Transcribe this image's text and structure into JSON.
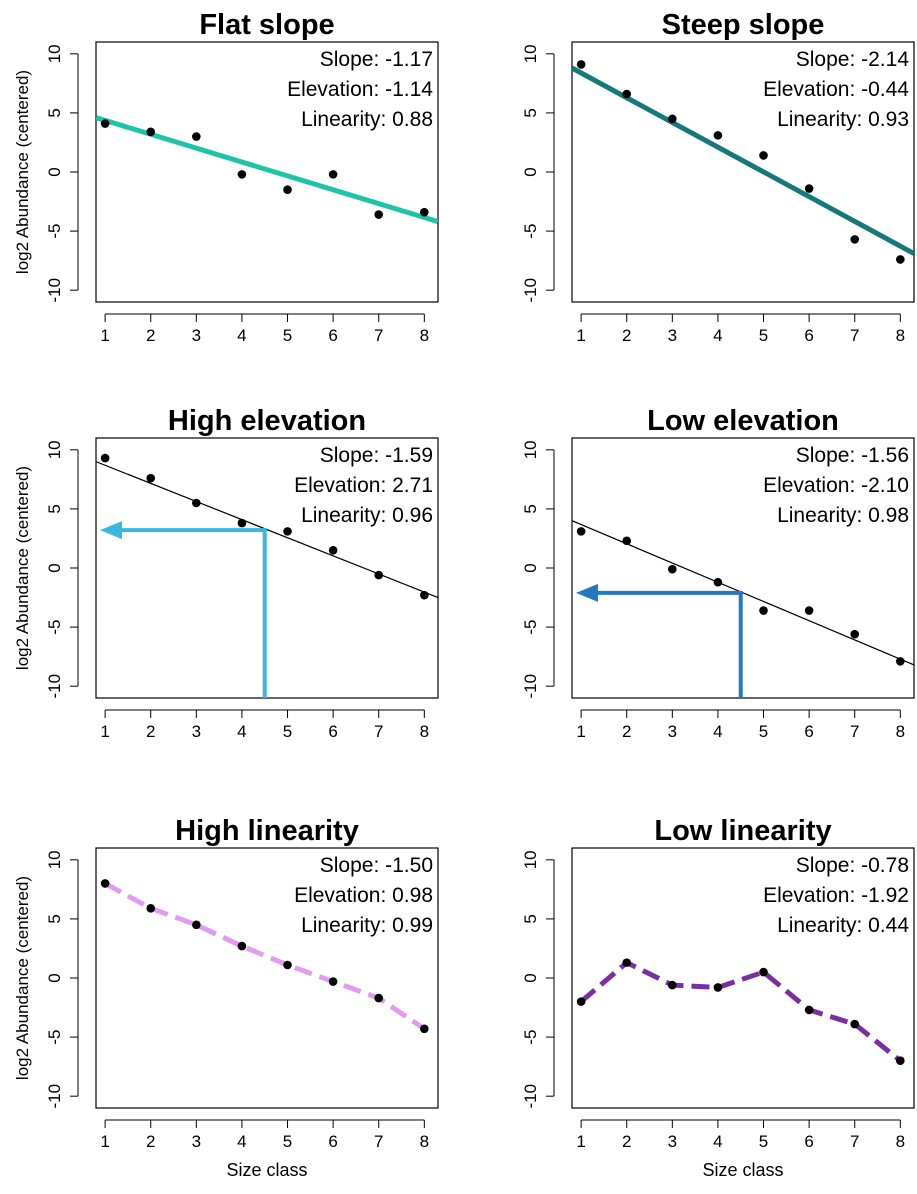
{
  "shared": {
    "ylabel": "log2 Abundance (centered)",
    "xlabel": "Size class",
    "xticks": [
      "1",
      "2",
      "3",
      "4",
      "5",
      "6",
      "7",
      "8"
    ],
    "yticks": [
      "10",
      "5",
      "0",
      "-5",
      "-10"
    ],
    "xlim": [
      0.8,
      8.3
    ],
    "ylim": [
      -11,
      11
    ]
  },
  "chart_data": [
    {
      "type": "scatter",
      "title": "Flat slope",
      "stats": [
        "Slope: -1.17",
        "Elevation: -1.14",
        "Linearity: 0.88"
      ],
      "x": [
        1,
        2,
        3,
        4,
        5,
        6,
        7,
        8
      ],
      "y": [
        4.1,
        3.4,
        3.0,
        -0.2,
        -1.5,
        -0.2,
        -3.6,
        -3.4
      ],
      "fit_line": {
        "x": [
          0.8,
          8.3
        ],
        "y": [
          4.6,
          -4.2
        ],
        "color": "#1fc4a8",
        "style": "solid-thick"
      },
      "xlim": [
        0.8,
        8.3
      ],
      "ylim": [
        -11,
        11
      ]
    },
    {
      "type": "scatter",
      "title": "Steep slope",
      "stats": [
        "Slope: -2.14",
        "Elevation: -0.44",
        "Linearity: 0.93"
      ],
      "x": [
        1,
        2,
        3,
        4,
        5,
        6,
        7,
        8
      ],
      "y": [
        9.1,
        6.6,
        4.5,
        3.1,
        1.4,
        -1.4,
        -5.7,
        -7.4
      ],
      "fit_line": {
        "x": [
          0.8,
          8.3
        ],
        "y": [
          8.8,
          -6.9
        ],
        "color": "#15787c",
        "style": "solid-thick"
      },
      "xlim": [
        0.8,
        8.3
      ],
      "ylim": [
        -11,
        11
      ]
    },
    {
      "type": "scatter",
      "title": "High elevation",
      "stats": [
        "Slope: -1.59",
        "Elevation: 2.71",
        "Linearity: 0.96"
      ],
      "x": [
        1,
        2,
        3,
        4,
        5,
        6,
        7,
        8
      ],
      "y": [
        9.3,
        7.6,
        5.5,
        3.8,
        3.1,
        1.5,
        -0.6,
        -2.3
      ],
      "fit_line": {
        "x": [
          0.8,
          8.3
        ],
        "y": [
          9.0,
          -2.5
        ],
        "color": "#000000",
        "style": "solid-thin"
      },
      "arrow": {
        "x": 4.5,
        "y": 3.2,
        "color": "#3bb6e3"
      },
      "xlim": [
        0.8,
        8.3
      ],
      "ylim": [
        -11,
        11
      ]
    },
    {
      "type": "scatter",
      "title": "Low elevation",
      "stats": [
        "Slope: -1.56",
        "Elevation: -2.10",
        "Linearity: 0.98"
      ],
      "x": [
        1,
        2,
        3,
        4,
        5,
        6,
        7,
        8
      ],
      "y": [
        3.1,
        2.3,
        -0.1,
        -1.2,
        -3.6,
        -3.6,
        -5.6,
        -7.9
      ],
      "fit_line": {
        "x": [
          0.8,
          8.3
        ],
        "y": [
          4.0,
          -8.2
        ],
        "color": "#000000",
        "style": "solid-thin"
      },
      "arrow": {
        "x": 4.5,
        "y": -2.1,
        "color": "#2479bf"
      },
      "xlim": [
        0.8,
        8.3
      ],
      "ylim": [
        -11,
        11
      ]
    },
    {
      "type": "line",
      "title": "High linearity",
      "stats": [
        "Slope: -1.50",
        "Elevation: 0.98",
        "Linearity: 0.99"
      ],
      "x": [
        1,
        2,
        3,
        4,
        5,
        6,
        7,
        8
      ],
      "y": [
        8.0,
        5.9,
        4.5,
        2.7,
        1.1,
        -0.3,
        -1.7,
        -4.3
      ],
      "line_color": "#e19cf1",
      "line_style": "dashed-thick",
      "xlim": [
        0.8,
        8.3
      ],
      "ylim": [
        -11,
        11
      ]
    },
    {
      "type": "line",
      "title": "Low linearity",
      "stats": [
        "Slope: -0.78",
        "Elevation: -1.92",
        "Linearity: 0.44"
      ],
      "x": [
        1,
        2,
        3,
        4,
        5,
        6,
        7,
        8
      ],
      "y": [
        -2.0,
        1.3,
        -0.6,
        -0.8,
        0.5,
        -2.7,
        -3.9,
        -7.0
      ],
      "line_color": "#7a2fa0",
      "line_style": "dashed-thick",
      "xlim": [
        0.8,
        8.3
      ],
      "ylim": [
        -11,
        11
      ]
    }
  ]
}
